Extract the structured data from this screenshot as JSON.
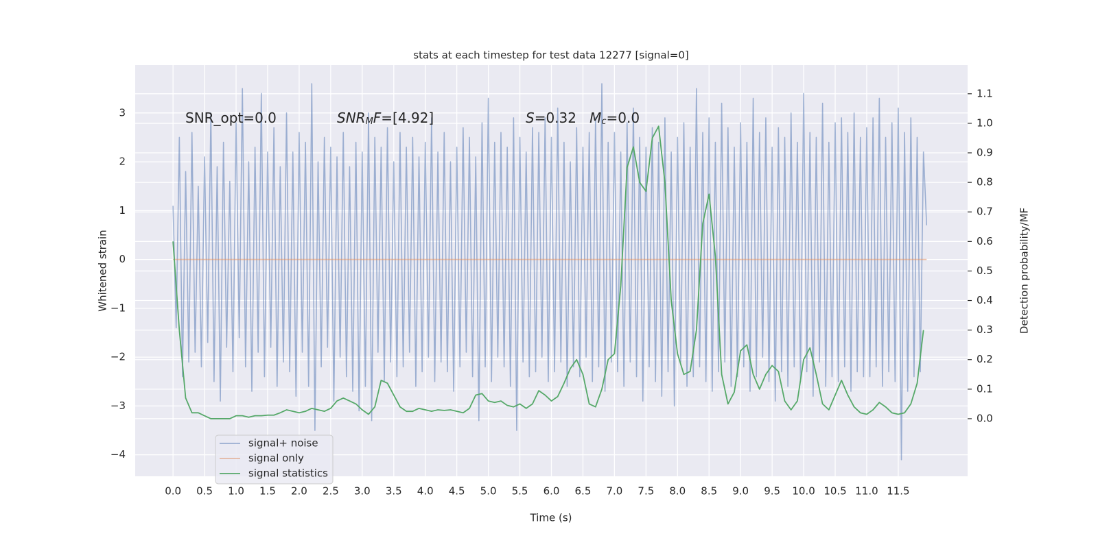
{
  "chart_data": {
    "type": "line",
    "title": "stats at each timestep for test data 12277 [signal=0]",
    "x_label": "Time (s)",
    "y_label": "Whitened strain",
    "y2_label": "Detection probability/MF",
    "annotations": [
      [
        {
          "text": "SNR_opt=0.0",
          "style": "normal"
        }
      ],
      [
        {
          "text": "SNR",
          "style": "italic"
        },
        {
          "text": "M",
          "style": "sub"
        },
        {
          "text": "F",
          "style": "italic"
        },
        {
          "text": "=[4.92]",
          "style": "normal"
        }
      ],
      [
        {
          "text": "S",
          "style": "italic"
        },
        {
          "text": "=0.32   ",
          "style": "normal"
        },
        {
          "text": "M",
          "style": "italic"
        },
        {
          "text": "c",
          "style": "sub"
        },
        {
          "text": "=0.0",
          "style": "normal"
        }
      ]
    ],
    "grid": true,
    "legend": "lower left",
    "xlim": [
      -0.6,
      12.6
    ],
    "ylim": [
      -4.44,
      3.98
    ],
    "y2lim": [
      -0.195,
      1.197
    ],
    "xticks": [
      {
        "value": 0,
        "label": "0.0"
      },
      {
        "value": 0.5,
        "label": "0.5"
      },
      {
        "value": 1,
        "label": "1.0"
      },
      {
        "value": 1.5,
        "label": "1.5"
      },
      {
        "value": 2,
        "label": "2.0"
      },
      {
        "value": 2.5,
        "label": "2.5"
      },
      {
        "value": 3,
        "label": "3.0"
      },
      {
        "value": 3.5,
        "label": "3.5"
      },
      {
        "value": 4,
        "label": "4.0"
      },
      {
        "value": 4.5,
        "label": "4.5"
      },
      {
        "value": 5,
        "label": "5.0"
      },
      {
        "value": 5.5,
        "label": "5.5"
      },
      {
        "value": 6,
        "label": "6.0"
      },
      {
        "value": 6.5,
        "label": "6.5"
      },
      {
        "value": 7,
        "label": "7.0"
      },
      {
        "value": 7.5,
        "label": "7.5"
      },
      {
        "value": 8,
        "label": "8.0"
      },
      {
        "value": 8.5,
        "label": "8.5"
      },
      {
        "value": 9,
        "label": "9.0"
      },
      {
        "value": 9.5,
        "label": "9.5"
      },
      {
        "value": 10,
        "label": "10.0"
      },
      {
        "value": 10.5,
        "label": "10.5"
      },
      {
        "value": 11,
        "label": "11.0"
      },
      {
        "value": 11.5,
        "label": "11.5"
      }
    ],
    "yticks": [
      {
        "value": -4,
        "label": "−4"
      },
      {
        "value": -3,
        "label": "−3"
      },
      {
        "value": -2,
        "label": "−2"
      },
      {
        "value": -1,
        "label": "−1"
      },
      0,
      1,
      2,
      3
    ],
    "y2ticks": [
      {
        "value": 0,
        "label": "0.0"
      },
      {
        "value": 0.1,
        "label": "0.1"
      },
      {
        "value": 0.2,
        "label": "0.2"
      },
      {
        "value": 0.3,
        "label": "0.3"
      },
      {
        "value": 0.4,
        "label": "0.4"
      },
      {
        "value": 0.5,
        "label": "0.5"
      },
      {
        "value": 0.6,
        "label": "0.6"
      },
      {
        "value": 0.7,
        "label": "0.7"
      },
      {
        "value": 0.8,
        "label": "0.8"
      },
      {
        "value": 0.9,
        "label": "0.9"
      },
      {
        "value": 1,
        "label": "1.0"
      },
      {
        "value": 1.1,
        "label": "1.1"
      }
    ],
    "series": [
      {
        "name": "signal+ noise",
        "color": "#4c72b0",
        "opacity": 0.5,
        "x": [
          0,
          0.05,
          0.1,
          0.15,
          0.2,
          0.25,
          0.3,
          0.35,
          0.4,
          0.45,
          0.5,
          0.55,
          0.6,
          0.65,
          0.7,
          0.75,
          0.8,
          0.85,
          0.9,
          0.95,
          1,
          1.05,
          1.1,
          1.15,
          1.2,
          1.25,
          1.3,
          1.35,
          1.4,
          1.45,
          1.5,
          1.55,
          1.6,
          1.65,
          1.7,
          1.75,
          1.8,
          1.85,
          1.9,
          1.95,
          2,
          2.05,
          2.1,
          2.15,
          2.2,
          2.25,
          2.3,
          2.35,
          2.4,
          2.45,
          2.5,
          2.55,
          2.6,
          2.65,
          2.7,
          2.75,
          2.8,
          2.85,
          2.9,
          2.95,
          3,
          3.05,
          3.1,
          3.15,
          3.2,
          3.25,
          3.3,
          3.35,
          3.4,
          3.45,
          3.5,
          3.55,
          3.6,
          3.65,
          3.7,
          3.75,
          3.8,
          3.85,
          3.9,
          3.95,
          4,
          4.05,
          4.1,
          4.15,
          4.2,
          4.25,
          4.3,
          4.35,
          4.4,
          4.45,
          4.5,
          4.55,
          4.6,
          4.65,
          4.7,
          4.75,
          4.8,
          4.85,
          4.9,
          4.95,
          5,
          5.05,
          5.1,
          5.15,
          5.2,
          5.25,
          5.3,
          5.35,
          5.4,
          5.45,
          5.5,
          5.55,
          5.6,
          5.65,
          5.7,
          5.75,
          5.8,
          5.85,
          5.9,
          5.95,
          6,
          6.05,
          6.1,
          6.15,
          6.2,
          6.25,
          6.3,
          6.35,
          6.4,
          6.45,
          6.5,
          6.55,
          6.6,
          6.65,
          6.7,
          6.75,
          6.8,
          6.85,
          6.9,
          6.95,
          7,
          7.05,
          7.1,
          7.15,
          7.2,
          7.25,
          7.3,
          7.35,
          7.4,
          7.45,
          7.5,
          7.55,
          7.6,
          7.65,
          7.7,
          7.75,
          7.8,
          7.85,
          7.9,
          7.95,
          8,
          8.05,
          8.1,
          8.15,
          8.2,
          8.25,
          8.3,
          8.35,
          8.4,
          8.45,
          8.5,
          8.55,
          8.6,
          8.65,
          8.7,
          8.75,
          8.8,
          8.85,
          8.9,
          8.95,
          9,
          9.05,
          9.1,
          9.15,
          9.2,
          9.25,
          9.3,
          9.35,
          9.4,
          9.45,
          9.5,
          9.55,
          9.6,
          9.65,
          9.7,
          9.75,
          9.8,
          9.85,
          9.9,
          9.95,
          10,
          10.05,
          10.1,
          10.15,
          10.2,
          10.25,
          10.3,
          10.35,
          10.4,
          10.45,
          10.5,
          10.55,
          10.6,
          10.65,
          10.7,
          10.75,
          10.8,
          10.85,
          10.9,
          10.95,
          11,
          11.05,
          11.1,
          11.15,
          11.2,
          11.25,
          11.3,
          11.35,
          11.4,
          11.45,
          11.5,
          11.55,
          11.6,
          11.65,
          11.7,
          11.75,
          11.8,
          11.85,
          11.9,
          11.95
        ],
        "values": [
          1.1,
          -1.4,
          2.5,
          -2.4,
          1.8,
          -2.1,
          2.6,
          -1.9,
          1.5,
          -2.2,
          2.1,
          -1.7,
          3.0,
          -2.5,
          1.9,
          -2.9,
          2.4,
          -1.8,
          1.6,
          -2.3,
          2.8,
          -1.6,
          3.5,
          -2.2,
          2.0,
          -2.7,
          2.3,
          -1.9,
          3.4,
          -2.4,
          2.2,
          -1.8,
          2.7,
          -2.6,
          1.9,
          -2.1,
          3.0,
          -2.3,
          2.2,
          -2.8,
          2.6,
          -1.9,
          2.4,
          -2.6,
          3.6,
          -3.5,
          2.0,
          -2.2,
          2.5,
          -1.8,
          2.3,
          -2.9,
          2.1,
          -2.0,
          2.6,
          -2.4,
          1.9,
          -2.7,
          2.4,
          -3.1,
          2.2,
          -2.6,
          3.0,
          -3.3,
          2.5,
          -1.9,
          2.3,
          -2.5,
          2.7,
          -2.1,
          2.0,
          -2.4,
          2.6,
          -2.2,
          2.3,
          -1.9,
          2.5,
          -2.6,
          2.1,
          -2.3,
          2.4,
          -2.0,
          2.9,
          -2.5,
          2.2,
          -2.1,
          2.6,
          -2.3,
          2.0,
          -2.7,
          2.3,
          -2.2,
          2.7,
          -1.9,
          2.5,
          -2.4,
          2.1,
          -3.3,
          2.8,
          -2.2,
          3.3,
          -2.5,
          2.4,
          -2.0,
          2.6,
          -2.2,
          2.3,
          -2.6,
          2.9,
          -3.5,
          2.5,
          -2.1,
          2.2,
          -2.4,
          2.7,
          -2.3,
          2.6,
          -2.0,
          2.9,
          -2.5,
          2.5,
          -2.3,
          3.1,
          -2.1,
          2.4,
          -2.6,
          2.0,
          -2.2,
          2.7,
          -2.4,
          2.3,
          -2.0,
          2.6,
          -2.5,
          2.9,
          -2.2,
          3.6,
          -2.7,
          2.4,
          -2.1,
          2.6,
          -2.3,
          2.2,
          -2.6,
          2.8,
          -2.1,
          3.1,
          -2.4,
          2.5,
          -2.9,
          2.3,
          -2.2,
          2.7,
          -2.5,
          2.4,
          -2.8,
          2.9,
          -2.3,
          2.2,
          -3.0,
          2.5,
          -2.1,
          2.8,
          -2.6,
          2.3,
          -2.4,
          3.5,
          -2.2,
          2.6,
          -2.5,
          2.9,
          -2.7,
          2.4,
          -2.3,
          3.2,
          -2.1,
          2.7,
          -2.6,
          2.3,
          -2.4,
          2.8,
          -2.2,
          2.4,
          -2.7,
          3.3,
          -2.4,
          2.6,
          -2.0,
          2.9,
          -2.5,
          2.3,
          -2.9,
          2.7,
          -2.3,
          2.5,
          -2.6,
          3.0,
          -2.2,
          2.4,
          -2.5,
          3.4,
          -2.3,
          2.6,
          -2.8,
          2.5,
          -2.1,
          3.2,
          -2.6,
          2.4,
          -2.4,
          2.8,
          -2.5,
          2.9,
          -2.2,
          2.6,
          -2.7,
          3.0,
          -2.3,
          2.5,
          -2.4,
          2.7,
          -2.4,
          2.9,
          -2.2,
          3.3,
          -2.6,
          2.5,
          -2.3,
          2.8,
          -2.5,
          3.1,
          -4.1,
          2.6,
          -2.7,
          2.9,
          -2.4,
          2.5,
          -2.3,
          2.2,
          0.7
        ]
      },
      {
        "name": "signal only",
        "color": "#dd8452",
        "opacity": 0.5,
        "x": [
          0,
          11.95
        ],
        "values": [
          0,
          0
        ]
      },
      {
        "name": "signal statistics",
        "color": "#55a868",
        "opacity": 1,
        "axis": "y2",
        "x": [
          0,
          0.1,
          0.2,
          0.3,
          0.4,
          0.5,
          0.6,
          0.7,
          0.8,
          0.9,
          1,
          1.1,
          1.2,
          1.3,
          1.4,
          1.5,
          1.6,
          1.7,
          1.8,
          1.9,
          2,
          2.1,
          2.2,
          2.3,
          2.4,
          2.5,
          2.6,
          2.7,
          2.8,
          2.9,
          3,
          3.1,
          3.2,
          3.3,
          3.4,
          3.5,
          3.6,
          3.7,
          3.8,
          3.9,
          4,
          4.1,
          4.2,
          4.3,
          4.4,
          4.5,
          4.6,
          4.7,
          4.8,
          4.9,
          5,
          5.1,
          5.2,
          5.3,
          5.4,
          5.5,
          5.6,
          5.7,
          5.8,
          5.9,
          6,
          6.1,
          6.2,
          6.3,
          6.4,
          6.5,
          6.6,
          6.7,
          6.8,
          6.9,
          7,
          7.1,
          7.2,
          7.3,
          7.4,
          7.5,
          7.6,
          7.7,
          7.8,
          7.9,
          8,
          8.1,
          8.2,
          8.3,
          8.4,
          8.5,
          8.6,
          8.7,
          8.8,
          8.9,
          9,
          9.1,
          9.2,
          9.3,
          9.4,
          9.5,
          9.6,
          9.7,
          9.8,
          9.9,
          10,
          10.1,
          10.2,
          10.3,
          10.4,
          10.5,
          10.6,
          10.7,
          10.8,
          10.9,
          11,
          11.1,
          11.2,
          11.3,
          11.4,
          11.5,
          11.6,
          11.7,
          11.8,
          11.9
        ],
        "values": [
          0.6,
          0.3,
          0.07,
          0.02,
          0.02,
          0.01,
          0,
          0,
          0,
          0,
          0.01,
          0.01,
          0.005,
          0.01,
          0.01,
          0.012,
          0.012,
          0.02,
          0.03,
          0.025,
          0.02,
          0.025,
          0.035,
          0.03,
          0.025,
          0.035,
          0.06,
          0.07,
          0.06,
          0.05,
          0.03,
          0.015,
          0.04,
          0.13,
          0.12,
          0.08,
          0.04,
          0.025,
          0.025,
          0.035,
          0.03,
          0.025,
          0.03,
          0.028,
          0.03,
          0.025,
          0.02,
          0.035,
          0.08,
          0.085,
          0.06,
          0.055,
          0.06,
          0.045,
          0.04,
          0.05,
          0.035,
          0.05,
          0.095,
          0.08,
          0.06,
          0.075,
          0.12,
          0.17,
          0.2,
          0.15,
          0.05,
          0.04,
          0.1,
          0.2,
          0.22,
          0.45,
          0.85,
          0.92,
          0.8,
          0.77,
          0.95,
          0.99,
          0.8,
          0.4,
          0.22,
          0.15,
          0.16,
          0.3,
          0.66,
          0.76,
          0.55,
          0.15,
          0.05,
          0.09,
          0.23,
          0.25,
          0.15,
          0.1,
          0.15,
          0.18,
          0.16,
          0.06,
          0.03,
          0.06,
          0.2,
          0.24,
          0.15,
          0.05,
          0.03,
          0.08,
          0.13,
          0.08,
          0.04,
          0.02,
          0.015,
          0.03,
          0.055,
          0.04,
          0.02,
          0.015,
          0.02,
          0.05,
          0.12,
          0.3
        ]
      }
    ]
  }
}
